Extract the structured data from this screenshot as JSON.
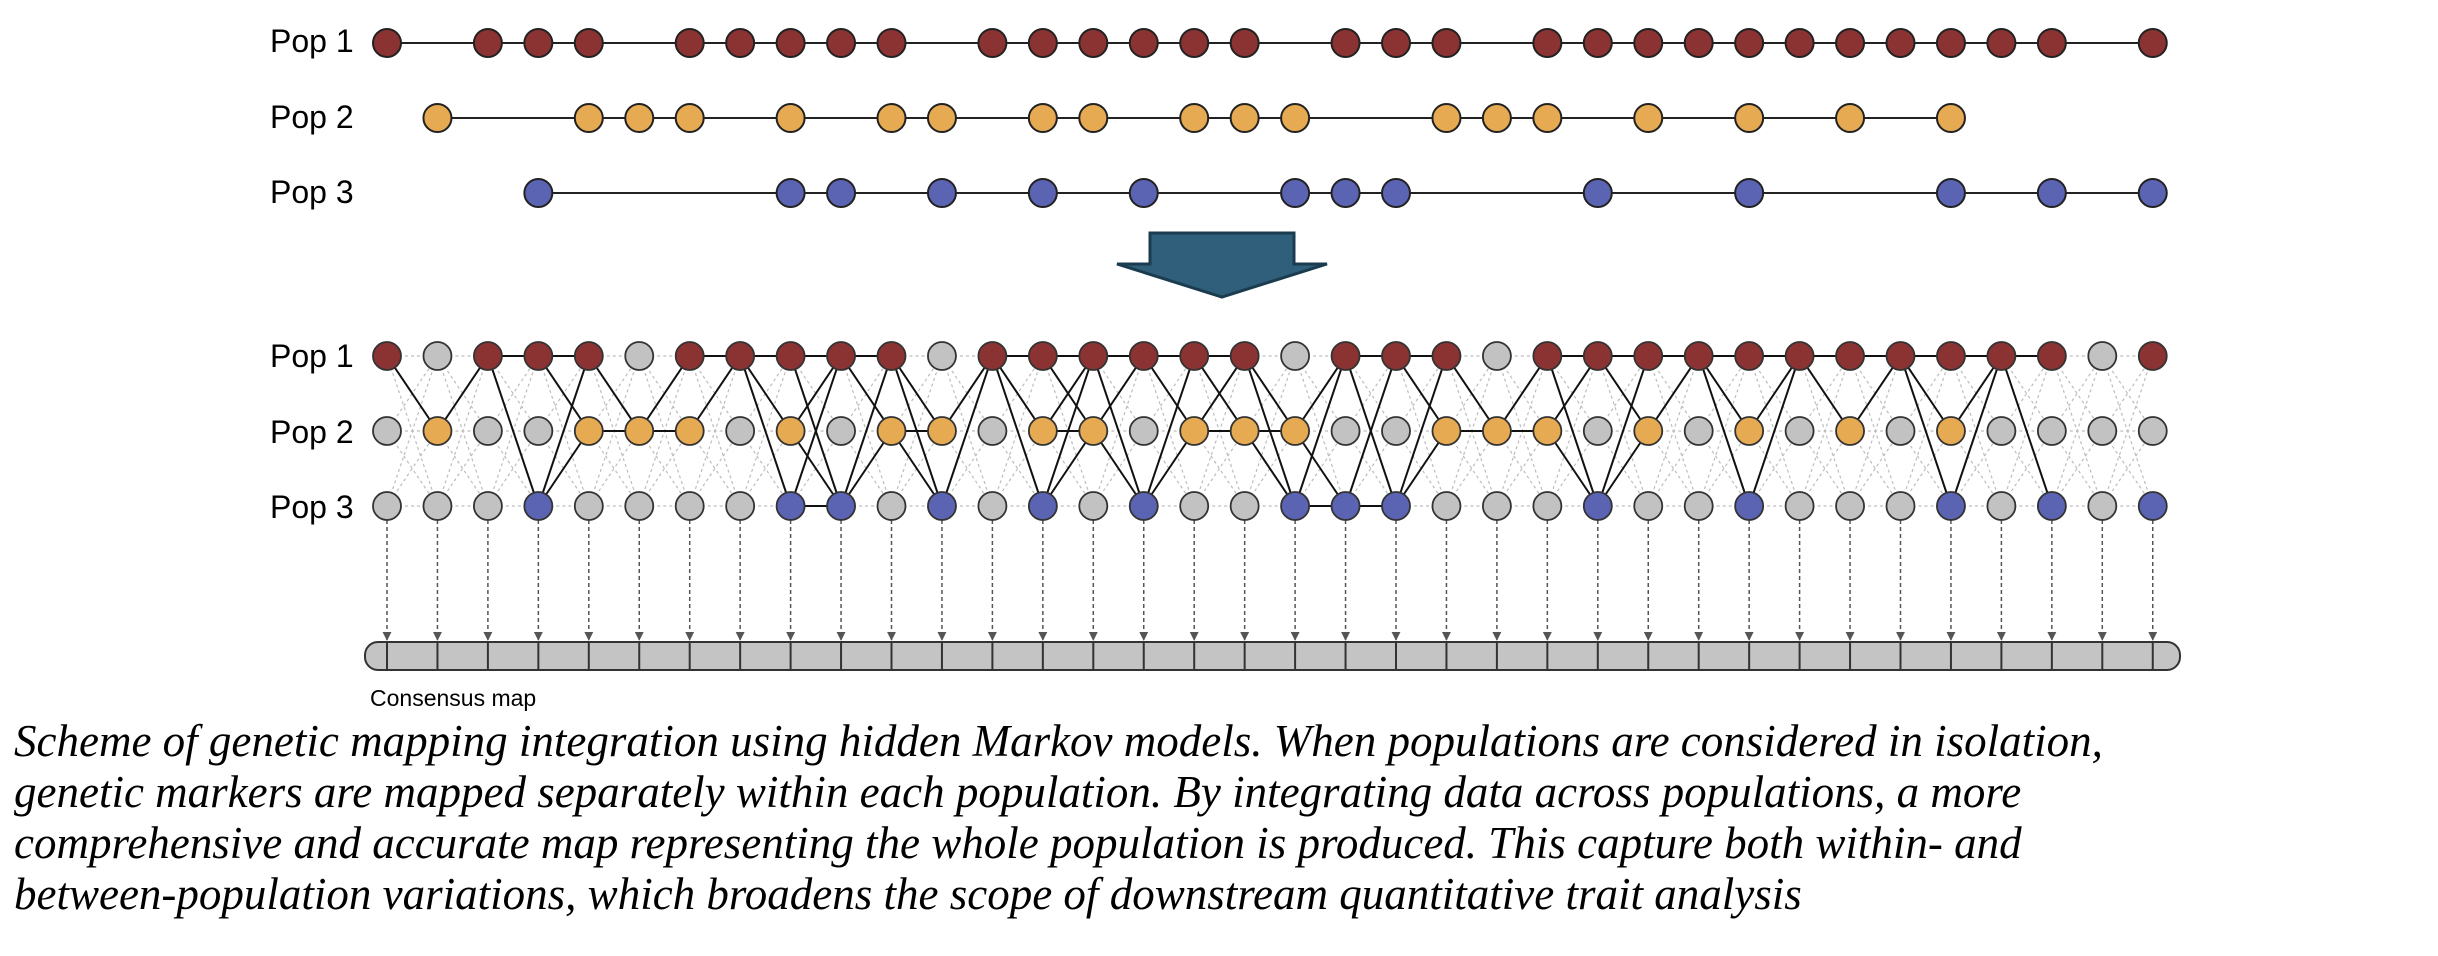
{
  "labels": {
    "pop1": "Pop 1",
    "pop2": "Pop 2",
    "pop3": "Pop 3",
    "consensus": "Consensus map"
  },
  "colors": {
    "pop1": "#8b3232",
    "pop2": "#e6aa52",
    "pop3": "#5b63b3",
    "empty": "#c2c2c2",
    "arrow": "#2f5f7a",
    "bar": "#c4c4c4"
  },
  "marker_count": 36,
  "pop1_markers": [
    0,
    2,
    3,
    4,
    6,
    7,
    8,
    9,
    10,
    12,
    13,
    14,
    15,
    16,
    17,
    19,
    20,
    21,
    23,
    24,
    25,
    26,
    27,
    28,
    29,
    30,
    31,
    32,
    33,
    35
  ],
  "pop2_markers": [
    1,
    4,
    5,
    6,
    8,
    10,
    11,
    13,
    14,
    16,
    17,
    18,
    21,
    22,
    23,
    25,
    27,
    29,
    31
  ],
  "pop3_markers": [
    3,
    8,
    9,
    11,
    13,
    15,
    18,
    19,
    20,
    24,
    27,
    31,
    33,
    35
  ],
  "caption_lines": [
    "Scheme of genetic mapping integration using hidden Markov models. When populations are considered in isolation,",
    "genetic markers are mapped separately within each population. By integrating data across populations, a more",
    "comprehensive and accurate map representing the whole population is produced. This capture both within- and",
    "between-population variations, which broadens the scope of downstream quantitative trait analysis"
  ]
}
